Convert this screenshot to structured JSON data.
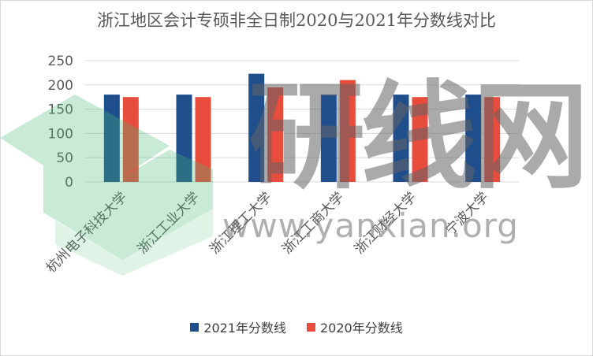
{
  "chart_data": {
    "type": "bar",
    "title": "浙江地区会计专硕非全日制2020与2021年分数线对比",
    "categories": [
      "杭州电子科技大学",
      "浙江工业大学",
      "浙江理工大学",
      "浙江工商大学",
      "浙江财经大学",
      "宁波大学"
    ],
    "series": [
      {
        "name": "2021年分数线",
        "color": "#1f4e8c",
        "values": [
          180,
          180,
          223,
          180,
          180,
          180
        ]
      },
      {
        "name": "2020年分数线",
        "color": "#e84c3d",
        "values": [
          175,
          175,
          195,
          210,
          175,
          175
        ]
      }
    ],
    "yticks": [
      0,
      50,
      100,
      150,
      200,
      250
    ],
    "ylim": [
      0,
      250
    ],
    "grid": true,
    "legend_position": "bottom"
  },
  "watermark": {
    "text": "研线网",
    "url": "www.yanxian.org",
    "logo_color": "#4cbb7a"
  }
}
